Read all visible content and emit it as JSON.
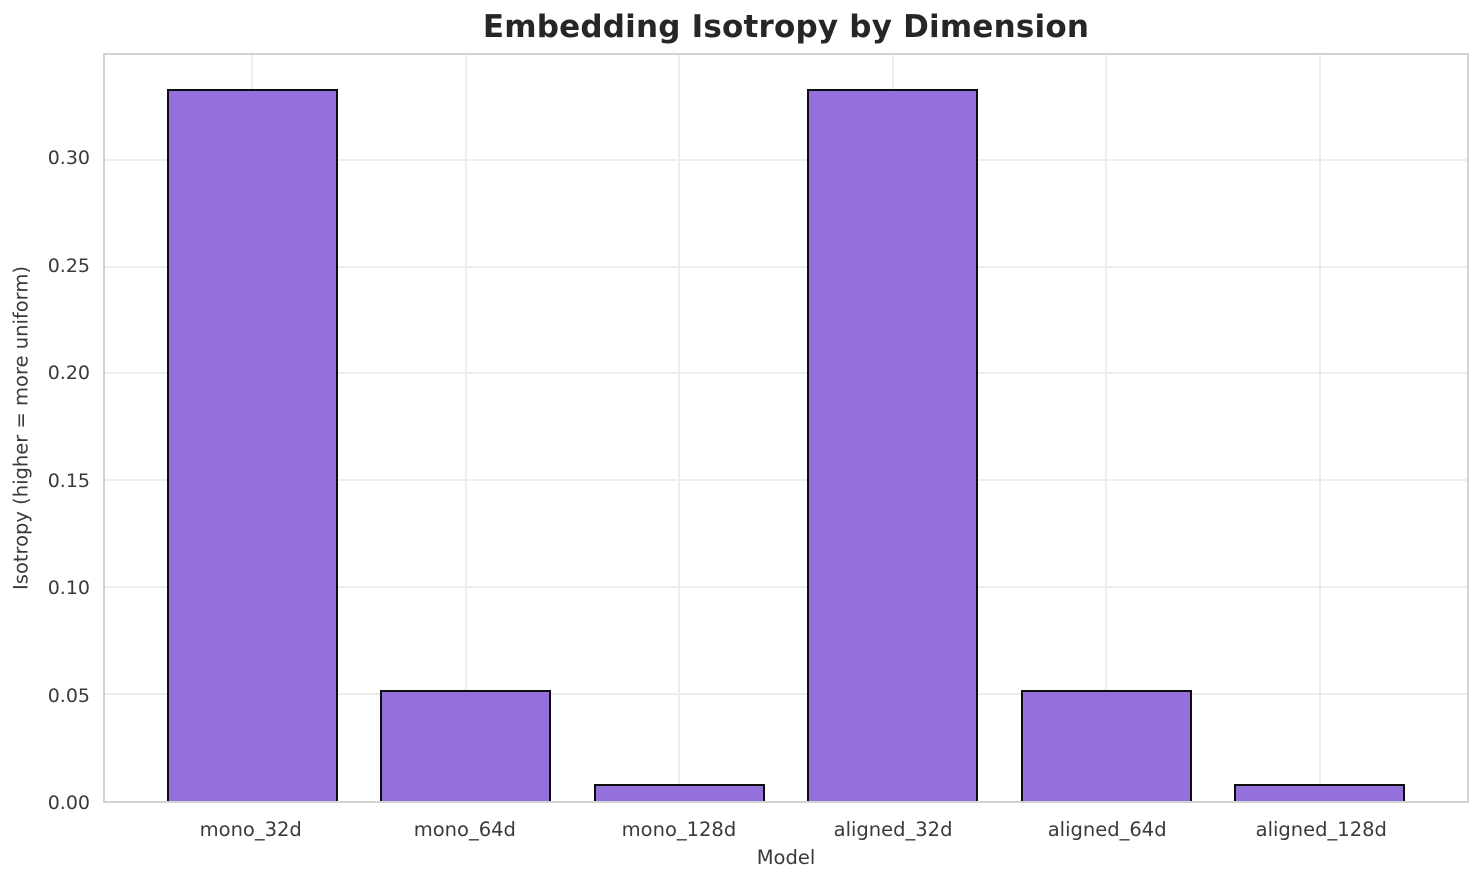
{
  "chart_data": {
    "type": "bar",
    "title": "Embedding Isotropy by Dimension",
    "xlabel": "Model",
    "ylabel": "Isotropy (higher = more uniform)",
    "categories": [
      "mono_32d",
      "mono_64d",
      "mono_128d",
      "aligned_32d",
      "aligned_64d",
      "aligned_128d"
    ],
    "values": [
      0.333,
      0.052,
      0.008,
      0.333,
      0.052,
      0.008
    ],
    "ylim": [
      0,
      0.349
    ],
    "xlim": [
      -0.69,
      5.69
    ],
    "yticks": [
      0,
      0.05,
      0.1,
      0.15,
      0.2,
      0.25,
      0.3
    ],
    "ytick_labels": [
      "0.00",
      "0.05",
      "0.10",
      "0.15",
      "0.20",
      "0.25",
      "0.30"
    ],
    "bar_width_fraction": 0.8,
    "grid": true,
    "legend_position": "none",
    "colors": {
      "bar_fill": "#9370DB",
      "bar_edge": "#0d0d0d",
      "grid_line": "#ededed",
      "axis_spine": "#d2d2d2",
      "title_text": "#262626",
      "tick_text": "#3a3a3a",
      "background": "#ffffff"
    }
  }
}
